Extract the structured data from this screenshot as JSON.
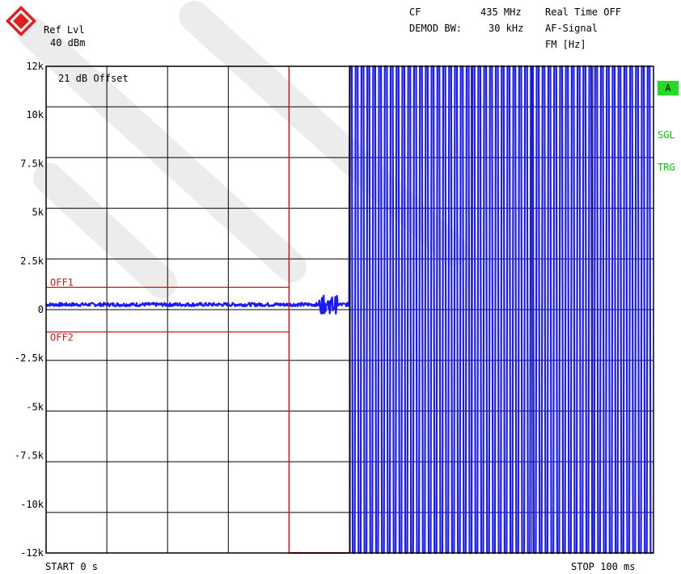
{
  "header": {
    "ref_lvl_label": "Ref Lvl",
    "ref_lvl_value": "40 dBm",
    "cf_label": "CF",
    "cf_value": "435 MHz",
    "realtime": "Real Time OFF",
    "demod_label": "DEMOD BW:",
    "demod_value": "30 kHz",
    "af_signal": "AF-Signal",
    "fm_unit": "FM [Hz]"
  },
  "side_labels": {
    "trace": "A",
    "sgl": "SGL",
    "trg": "TRG"
  },
  "footer": {
    "start": "START 0 s",
    "stop": "STOP 100 ms"
  },
  "annotation": "21 dB Offset",
  "colors": {
    "trace": "#1a1aff",
    "lines": "#d01818",
    "side": "#00d000",
    "badge_bg": "#22dd22"
  },
  "chart_data": {
    "type": "line",
    "title": "",
    "xlabel": "",
    "ylabel": "FM [Hz]",
    "xlim": [
      0,
      100
    ],
    "x_unit": "ms",
    "ylim": [
      -12000,
      12000
    ],
    "y_ticks": [
      "12k",
      "10k",
      "7.5k",
      "5k",
      "2.5k",
      "0",
      "-2.5k",
      "-5k",
      "-7.5k",
      "-10k",
      "-12k"
    ],
    "y_tick_values": [
      12000,
      10000,
      7500,
      5000,
      2500,
      0,
      -2500,
      -5000,
      -7500,
      -10000,
      -12000
    ],
    "grid": true,
    "limit_lines": [
      {
        "name": "OFF1",
        "value": 1100,
        "x_end": 40
      },
      {
        "name": "OFF2",
        "value": -1100,
        "x_end": 40
      }
    ],
    "vertical_lines": [
      40,
      50
    ],
    "series": [
      {
        "segments": [
          {
            "x_start": 0,
            "x_end": 50,
            "kind": "flat-noise",
            "level": 250
          },
          {
            "x_start": 50,
            "x_end": 100,
            "kind": "square-wave",
            "high": 12000,
            "low": -12000,
            "cycles": 52
          }
        ]
      }
    ]
  }
}
